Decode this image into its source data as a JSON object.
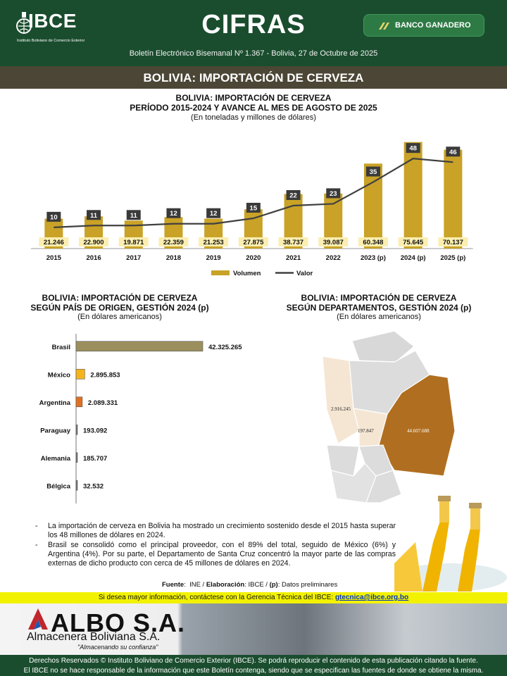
{
  "header": {
    "logo_text": "IBCE",
    "logo_subtitle": "Instituto Boliviano de Comercio Exterior",
    "title": "CIFRAS",
    "bank": "BANCO GANADERO",
    "bulletin": "Boletín Electrónico Bisemanal Nº 1.367 - Bolivia, 27 de Octubre de 2025"
  },
  "section_title": "BOLIVIA: IMPORTACIÓN DE CERVEZA",
  "chart_data": [
    {
      "type": "bar",
      "title": "BOLIVIA: IMPORTACIÓN DE CERVEZA",
      "subtitle": "PERÍODO 2015-2024 Y AVANCE AL MES DE AGOSTO DE 2025",
      "units": "(En toneladas y millones de dólares)",
      "categories": [
        "2015",
        "2016",
        "2017",
        "2018",
        "2019",
        "2020",
        "2021",
        "2022",
        "2023 (p)",
        "2024 (p)",
        "2025 (p)"
      ],
      "series": [
        {
          "name": "Volumen",
          "type": "bar",
          "color": "#c9a227",
          "values": [
            21246,
            22900,
            19871,
            22359,
            21253,
            27875,
            38737,
            39087,
            60348,
            75645,
            70137
          ],
          "labels": [
            "21.246",
            "22.900",
            "19.871",
            "22.359",
            "21.253",
            "27.875",
            "38.737",
            "39.087",
            "60.348",
            "75.645",
            "70.137"
          ]
        },
        {
          "name": "Valor",
          "type": "line",
          "color": "#404040",
          "values": [
            10,
            11,
            11,
            12,
            12,
            15,
            22,
            23,
            35,
            48,
            46
          ],
          "labels": [
            "10",
            "11",
            "11",
            "12",
            "12",
            "15",
            "22",
            "23",
            "35",
            "48",
            "46"
          ]
        }
      ],
      "legend": "bottom"
    },
    {
      "type": "bar",
      "orientation": "horizontal",
      "title": "BOLIVIA: IMPORTACIÓN DE CERVEZA",
      "subtitle": "SEGÚN PAÍS DE ORIGEN, GESTIÓN 2024 (p)",
      "units": "(En dólares americanos)",
      "categories": [
        "Brasil",
        "México",
        "Argentina",
        "Paraguay",
        "Alemania",
        "Bélgica"
      ],
      "values": [
        42325265,
        2895853,
        2089331,
        193092,
        185707,
        32532
      ],
      "labels": [
        "42.325.265",
        "2.895.853",
        "2.089.331",
        "193.092",
        "185.707",
        "32.532"
      ],
      "colors": [
        "#9c8f5e",
        "#f5b41a",
        "#e07020",
        "#777777",
        "#777777",
        "#777777"
      ]
    },
    {
      "type": "map",
      "title": "BOLIVIA: IMPORTACIÓN DE CERVEZA",
      "subtitle": "SEGÚN DEPARTAMENTOS, GESTIÓN 2024 (p)",
      "units": "(En dólares americanos)",
      "regions": [
        {
          "label": "2.916.245",
          "value": 2916245,
          "color": "#f5e6d3"
        },
        {
          "label": "197.847",
          "value": 197847,
          "color": "#f5e6d3"
        },
        {
          "label": "44.607.688",
          "value": 44607688,
          "color": "#b06f20"
        }
      ]
    }
  ],
  "notes": [
    "La importación de cerveza en Bolivia ha mostrado un crecimiento sostenido desde el 2015 hasta superar los 48 millones de dólares en 2024.",
    "Brasil se consolidó como el principal proveedor, con el 89% del total, seguido de México (6%) y Argentina (4%). Por su parte, el Departamento de Santa Cruz concentró la mayor parte de las compras externas de dicho producto con cerca de 45 millones de dólares en 2024."
  ],
  "source": {
    "fuente_label": "Fuente",
    "fuente": "INE",
    "elab_label": "Elaboración",
    "elab": "IBCE",
    "p_label": "(p)",
    "p_text": "Datos preliminares"
  },
  "contact": {
    "text": "Si desea mayor información, contáctese con la Gerencia Técnica del IBCE: ",
    "email": "gtecnica@ibce.org.bo"
  },
  "ad": {
    "logo": "ALBO S.A.",
    "name": "Almacenera Boliviana S.A.",
    "slogan": "\"Almacenando su confianza\""
  },
  "footer": {
    "line1": "Derechos Reservados © Instituto Boliviano de Comercio Exterior (IBCE). Se podrá reproducir el contenido de esta publicación citando la fuente.",
    "line2": "El IBCE no se hace responsable de la información que este Boletín contenga, siendo que se especifican las fuentes de donde se obtiene la misma."
  }
}
